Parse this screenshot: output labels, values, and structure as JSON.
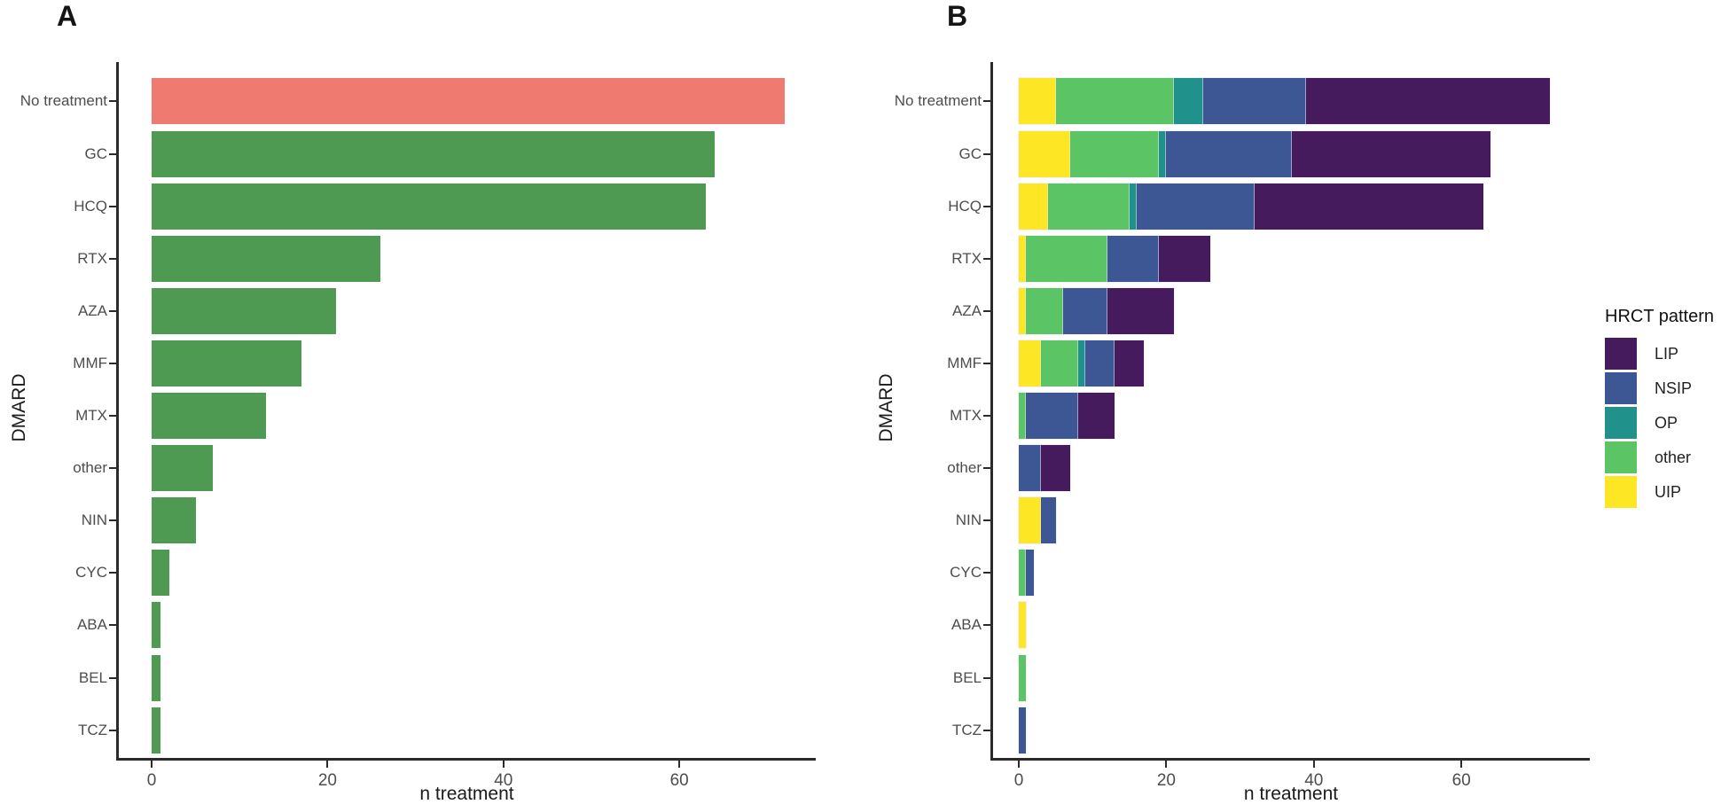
{
  "figure": {
    "panels": [
      {
        "label": "A"
      },
      {
        "label": "B"
      }
    ]
  },
  "legend": {
    "title": "HRCT pattern",
    "entries": [
      {
        "label": "LIP",
        "color": "#451B5E"
      },
      {
        "label": "NSIP",
        "color": "#3D5794"
      },
      {
        "label": "OP",
        "color": "#21918C"
      },
      {
        "label": "other",
        "color": "#5BC566"
      },
      {
        "label": "UIP",
        "color": "#FDE725"
      }
    ]
  },
  "colors": {
    "no_treatment_bar": "#EF7A70",
    "treatment_bar": "#4F9A52",
    "LIP": "#451B5E",
    "NSIP": "#3D5794",
    "OP": "#21918C",
    "other": "#5BC566",
    "UIP": "#FDE725",
    "axis_line": "#2b2b2b",
    "tick_text": "#4d4d4d"
  },
  "chart_data": [
    {
      "type": "bar",
      "panel": "A",
      "orientation": "horizontal",
      "title": "A",
      "xlabel": "n treatment",
      "ylabel": "DMARD",
      "categories": [
        "No treatment",
        "GC",
        "HCQ",
        "RTX",
        "AZA",
        "MMF",
        "MTX",
        "other",
        "NIN",
        "CYC",
        "ABA",
        "BEL",
        "TCZ"
      ],
      "values": [
        72,
        64,
        63,
        26,
        21,
        17,
        13,
        7,
        5,
        2,
        1,
        1,
        1
      ],
      "highlight_category": "No treatment",
      "highlight_color": "#EF7A70",
      "default_color": "#4F9A52",
      "x_ticks": [
        0,
        20,
        40,
        60
      ],
      "xlim": [
        0,
        75.5
      ],
      "grid": false,
      "legend_position": "none"
    },
    {
      "type": "bar",
      "panel": "B",
      "orientation": "horizontal",
      "stacked": true,
      "title": "B",
      "xlabel": "n treatment",
      "ylabel": "DMARD",
      "categories": [
        "No treatment",
        "GC",
        "HCQ",
        "RTX",
        "AZA",
        "MMF",
        "MTX",
        "other",
        "NIN",
        "CYC",
        "ABA",
        "BEL",
        "TCZ"
      ],
      "stack_order_left_to_right": [
        "UIP",
        "other",
        "OP",
        "NSIP",
        "LIP"
      ],
      "series": [
        {
          "name": "UIP",
          "values": [
            5,
            7,
            4,
            1,
            1,
            3,
            0,
            0,
            3,
            0,
            1,
            0,
            0
          ]
        },
        {
          "name": "other",
          "values": [
            16,
            12,
            11,
            11,
            5,
            5,
            1,
            0,
            0,
            1,
            0,
            1,
            0
          ]
        },
        {
          "name": "OP",
          "values": [
            4,
            1,
            1,
            0,
            0,
            1,
            0,
            0,
            0,
            0,
            0,
            0,
            0
          ]
        },
        {
          "name": "NSIP",
          "values": [
            14,
            17,
            16,
            7,
            6,
            4,
            7,
            3,
            2,
            1,
            0,
            0,
            1
          ]
        },
        {
          "name": "LIP",
          "values": [
            33,
            27,
            31,
            7,
            9,
            4,
            5,
            4,
            0,
            0,
            0,
            0,
            0
          ]
        }
      ],
      "totals": [
        72,
        64,
        63,
        26,
        21,
        17,
        13,
        7,
        5,
        2,
        1,
        1,
        1
      ],
      "x_ticks": [
        0,
        20,
        40,
        60
      ],
      "xlim": [
        0,
        77.5
      ],
      "grid": false,
      "legend_title": "HRCT pattern",
      "legend_entries": [
        "LIP",
        "NSIP",
        "OP",
        "other",
        "UIP"
      ],
      "legend_position": "right"
    }
  ]
}
